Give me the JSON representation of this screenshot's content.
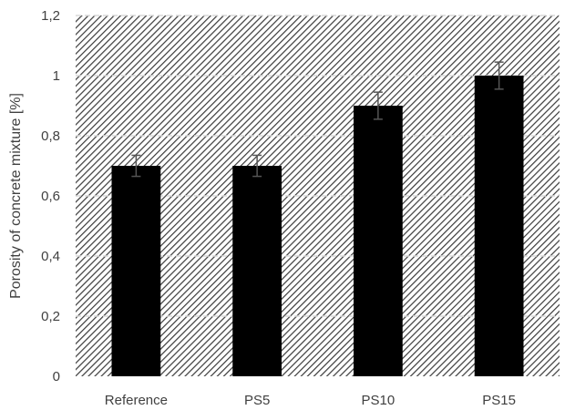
{
  "chart_data": {
    "type": "bar",
    "title": "",
    "xlabel": "",
    "ylabel": "Porosity of concrete mixture [%]",
    "categories": [
      "Reference",
      "PS5",
      "PS10",
      "PS15"
    ],
    "values": [
      0.7,
      0.7,
      0.9,
      1.0
    ],
    "error": [
      0.035,
      0.035,
      0.045,
      0.045
    ],
    "ylim": [
      0,
      1.2
    ],
    "yticks": [
      0,
      0.2,
      0.4,
      0.6,
      0.8,
      1.0,
      1.2
    ],
    "ytick_labels": [
      "0",
      "0,2",
      "0,4",
      "0,6",
      "0,8",
      "1",
      "1,2"
    ],
    "grid": true,
    "plot_background": "diagonal hatch",
    "colors": {
      "bar": "#000000",
      "hatch": "#3a3a3a",
      "grid": "#d9d9d9",
      "text": "#404040",
      "errorbar": "#555555"
    }
  }
}
